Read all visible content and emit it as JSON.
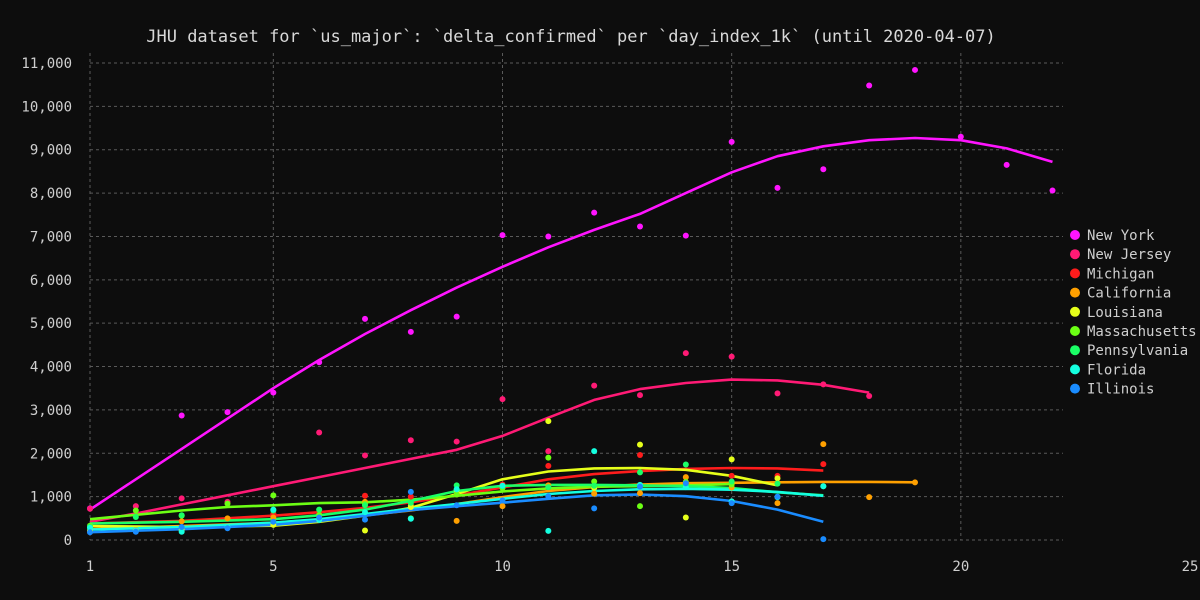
{
  "chart_data": {
    "type": "scatter",
    "title": "JHU dataset for `us_major`: `delta_confirmed` per `day_index_1k` (until 2020-04-07)",
    "xlabel": "",
    "ylabel": "",
    "xlim": [
      1,
      25
    ],
    "ylim": [
      0,
      11000
    ],
    "x_ticks": [
      "1",
      "5",
      "10",
      "15",
      "20",
      "25"
    ],
    "y_ticks": [
      "0",
      "1,000",
      "2,000",
      "3,000",
      "4,000",
      "5,000",
      "6,000",
      "7,000",
      "8,000",
      "9,000",
      "10,000",
      "11,000"
    ],
    "grid": true,
    "legend_position": "right",
    "series": [
      {
        "name": "New York",
        "color": "#ff14ff",
        "points": [
          [
            1,
            730
          ],
          [
            3,
            2870
          ],
          [
            4,
            2950
          ],
          [
            5,
            3400
          ],
          [
            6,
            4100
          ],
          [
            7,
            5100
          ],
          [
            8,
            4800
          ],
          [
            9,
            5150
          ],
          [
            10,
            7030
          ],
          [
            11,
            7000
          ],
          [
            12,
            7550
          ],
          [
            13,
            7230
          ],
          [
            14,
            7020
          ],
          [
            15,
            9180
          ],
          [
            16,
            8120
          ],
          [
            17,
            8550
          ],
          [
            18,
            10480
          ],
          [
            19,
            10840
          ],
          [
            20,
            9300
          ],
          [
            21,
            8650
          ],
          [
            22,
            8060
          ]
        ],
        "trend": [
          [
            1,
            700
          ],
          [
            2,
            1400
          ],
          [
            3,
            2100
          ],
          [
            4,
            2800
          ],
          [
            5,
            3500
          ],
          [
            6,
            4150
          ],
          [
            7,
            4750
          ],
          [
            8,
            5300
          ],
          [
            9,
            5820
          ],
          [
            10,
            6300
          ],
          [
            11,
            6750
          ],
          [
            12,
            7150
          ],
          [
            13,
            7520
          ],
          [
            14,
            8000
          ],
          [
            15,
            8480
          ],
          [
            16,
            8850
          ],
          [
            17,
            9080
          ],
          [
            18,
            9220
          ],
          [
            19,
            9270
          ],
          [
            20,
            9220
          ],
          [
            21,
            9030
          ],
          [
            22,
            8720
          ]
        ]
      },
      {
        "name": "New Jersey",
        "color": "#ff1a75",
        "points": [
          [
            1,
            720
          ],
          [
            2,
            780
          ],
          [
            3,
            960
          ],
          [
            4,
            880
          ],
          [
            5,
            600
          ],
          [
            6,
            2480
          ],
          [
            7,
            1950
          ],
          [
            8,
            2300
          ],
          [
            9,
            2270
          ],
          [
            10,
            3250
          ],
          [
            11,
            2050
          ],
          [
            12,
            3560
          ],
          [
            13,
            3340
          ],
          [
            14,
            4310
          ],
          [
            15,
            4230
          ],
          [
            16,
            3380
          ],
          [
            17,
            3590
          ],
          [
            18,
            3320
          ]
        ],
        "trend": [
          [
            1,
            420
          ],
          [
            2,
            610
          ],
          [
            3,
            820
          ],
          [
            4,
            1030
          ],
          [
            5,
            1240
          ],
          [
            6,
            1450
          ],
          [
            7,
            1660
          ],
          [
            8,
            1870
          ],
          [
            9,
            2080
          ],
          [
            10,
            2400
          ],
          [
            11,
            2820
          ],
          [
            12,
            3230
          ],
          [
            13,
            3480
          ],
          [
            14,
            3620
          ],
          [
            15,
            3700
          ],
          [
            16,
            3680
          ],
          [
            17,
            3580
          ],
          [
            18,
            3400
          ]
        ]
      },
      {
        "name": "Michigan",
        "color": "#ff1c1c",
        "points": [
          [
            5,
            600
          ],
          [
            6,
            640
          ],
          [
            7,
            1020
          ],
          [
            8,
            1000
          ],
          [
            9,
            1050
          ],
          [
            10,
            1280
          ],
          [
            11,
            1710
          ],
          [
            12,
            1230
          ],
          [
            13,
            1960
          ],
          [
            14,
            1320
          ],
          [
            15,
            1480
          ],
          [
            16,
            1480
          ],
          [
            17,
            1750
          ]
        ],
        "trend": [
          [
            1,
            380
          ],
          [
            3,
            440
          ],
          [
            5,
            560
          ],
          [
            6,
            640
          ],
          [
            7,
            740
          ],
          [
            8,
            870
          ],
          [
            9,
            1030
          ],
          [
            10,
            1210
          ],
          [
            11,
            1400
          ],
          [
            12,
            1520
          ],
          [
            13,
            1590
          ],
          [
            14,
            1640
          ],
          [
            15,
            1660
          ],
          [
            16,
            1650
          ],
          [
            17,
            1600
          ]
        ]
      },
      {
        "name": "California",
        "color": "#ffa000",
        "points": [
          [
            1,
            200
          ],
          [
            2,
            230
          ],
          [
            3,
            430
          ],
          [
            4,
            500
          ],
          [
            5,
            520
          ],
          [
            6,
            460
          ],
          [
            7,
            880
          ],
          [
            8,
            800
          ],
          [
            9,
            440
          ],
          [
            10,
            780
          ],
          [
            11,
            1260
          ],
          [
            12,
            1070
          ],
          [
            13,
            1080
          ],
          [
            14,
            1450
          ],
          [
            15,
            1210
          ],
          [
            16,
            850
          ],
          [
            17,
            2210
          ],
          [
            18,
            990
          ],
          [
            19,
            1330
          ]
        ],
        "trend": [
          [
            1,
            250
          ],
          [
            3,
            320
          ],
          [
            5,
            400
          ],
          [
            6,
            470
          ],
          [
            7,
            570
          ],
          [
            8,
            680
          ],
          [
            9,
            830
          ],
          [
            10,
            990
          ],
          [
            11,
            1130
          ],
          [
            12,
            1220
          ],
          [
            13,
            1280
          ],
          [
            14,
            1310
          ],
          [
            15,
            1320
          ],
          [
            16,
            1330
          ],
          [
            17,
            1340
          ],
          [
            18,
            1340
          ],
          [
            19,
            1330
          ]
        ]
      },
      {
        "name": "Louisiana",
        "color": "#e6ff1a",
        "points": [
          [
            1,
            220
          ],
          [
            3,
            230
          ],
          [
            5,
            350
          ],
          [
            7,
            220
          ],
          [
            8,
            760
          ],
          [
            9,
            1150
          ],
          [
            10,
            1230
          ],
          [
            11,
            2740
          ],
          [
            12,
            1200
          ],
          [
            13,
            2200
          ],
          [
            14,
            520
          ],
          [
            15,
            1860
          ],
          [
            16,
            1420
          ]
        ],
        "trend": [
          [
            1,
            320
          ],
          [
            3,
            300
          ],
          [
            5,
            330
          ],
          [
            6,
            420
          ],
          [
            7,
            560
          ],
          [
            8,
            740
          ],
          [
            9,
            1060
          ],
          [
            10,
            1400
          ],
          [
            11,
            1580
          ],
          [
            12,
            1650
          ],
          [
            13,
            1660
          ],
          [
            14,
            1620
          ],
          [
            15,
            1480
          ],
          [
            16,
            1260
          ]
        ]
      },
      {
        "name": "Massachusetts",
        "color": "#6cff14",
        "points": [
          [
            1,
            330
          ],
          [
            2,
            680
          ],
          [
            3,
            560
          ],
          [
            4,
            840
          ],
          [
            5,
            1030
          ],
          [
            6,
            580
          ],
          [
            7,
            830
          ],
          [
            8,
            500
          ],
          [
            9,
            1050
          ],
          [
            10,
            1200
          ],
          [
            11,
            1900
          ],
          [
            12,
            1350
          ],
          [
            13,
            780
          ],
          [
            14,
            1340
          ],
          [
            15,
            1280
          ]
        ],
        "trend": [
          [
            1,
            480
          ],
          [
            2,
            580
          ],
          [
            3,
            680
          ],
          [
            4,
            760
          ],
          [
            5,
            800
          ],
          [
            6,
            850
          ],
          [
            7,
            870
          ],
          [
            8,
            930
          ],
          [
            9,
            1020
          ],
          [
            10,
            1120
          ],
          [
            11,
            1190
          ],
          [
            12,
            1230
          ],
          [
            13,
            1240
          ],
          [
            14,
            1260
          ],
          [
            15,
            1290
          ]
        ]
      },
      {
        "name": "Pennsylvania",
        "color": "#1aff66",
        "points": [
          [
            1,
            300
          ],
          [
            2,
            530
          ],
          [
            3,
            570
          ],
          [
            5,
            680
          ],
          [
            6,
            700
          ],
          [
            7,
            800
          ],
          [
            8,
            860
          ],
          [
            9,
            1260
          ],
          [
            10,
            1240
          ],
          [
            11,
            1220
          ],
          [
            12,
            1250
          ],
          [
            13,
            1560
          ],
          [
            14,
            1740
          ],
          [
            15,
            1350
          ],
          [
            16,
            1300
          ],
          [
            17,
            1240
          ]
        ],
        "trend": [
          [
            1,
            380
          ],
          [
            3,
            420
          ],
          [
            5,
            480
          ],
          [
            6,
            570
          ],
          [
            7,
            700
          ],
          [
            8,
            900
          ],
          [
            9,
            1130
          ],
          [
            10,
            1250
          ],
          [
            11,
            1270
          ],
          [
            12,
            1270
          ],
          [
            13,
            1260
          ],
          [
            14,
            1240
          ],
          [
            15,
            1200
          ],
          [
            16,
            1100
          ],
          [
            17,
            1030
          ]
        ]
      },
      {
        "name": "Florida",
        "color": "#14ffe0",
        "points": [
          [
            1,
            280
          ],
          [
            2,
            220
          ],
          [
            3,
            190
          ],
          [
            4,
            290
          ],
          [
            5,
            700
          ],
          [
            6,
            460
          ],
          [
            7,
            640
          ],
          [
            8,
            490
          ],
          [
            9,
            1170
          ],
          [
            10,
            1250
          ],
          [
            11,
            210
          ],
          [
            12,
            2050
          ],
          [
            13,
            1270
          ],
          [
            14,
            1220
          ],
          [
            15,
            890
          ],
          [
            16,
            990
          ],
          [
            17,
            1240
          ]
        ],
        "trend": [
          [
            1,
            240
          ],
          [
            3,
            300
          ],
          [
            5,
            400
          ],
          [
            6,
            480
          ],
          [
            7,
            600
          ],
          [
            8,
            720
          ],
          [
            9,
            830
          ],
          [
            10,
            950
          ],
          [
            11,
            1060
          ],
          [
            12,
            1130
          ],
          [
            13,
            1170
          ],
          [
            14,
            1180
          ],
          [
            15,
            1160
          ],
          [
            16,
            1110
          ],
          [
            17,
            1020
          ]
        ]
      },
      {
        "name": "Illinois",
        "color": "#1a8cff",
        "points": [
          [
            1,
            180
          ],
          [
            2,
            190
          ],
          [
            3,
            300
          ],
          [
            4,
            270
          ],
          [
            5,
            420
          ],
          [
            6,
            520
          ],
          [
            7,
            470
          ],
          [
            8,
            1110
          ],
          [
            9,
            800
          ],
          [
            10,
            910
          ],
          [
            11,
            1010
          ],
          [
            12,
            730
          ],
          [
            13,
            1230
          ],
          [
            14,
            1310
          ],
          [
            15,
            850
          ],
          [
            16,
            1000
          ],
          [
            17,
            20
          ]
        ],
        "trend": [
          [
            1,
            180
          ],
          [
            3,
            250
          ],
          [
            5,
            350
          ],
          [
            6,
            440
          ],
          [
            7,
            560
          ],
          [
            8,
            690
          ],
          [
            9,
            780
          ],
          [
            10,
            860
          ],
          [
            11,
            950
          ],
          [
            12,
            1030
          ],
          [
            13,
            1050
          ],
          [
            14,
            1010
          ],
          [
            15,
            900
          ],
          [
            16,
            700
          ],
          [
            17,
            420
          ]
        ]
      }
    ]
  }
}
